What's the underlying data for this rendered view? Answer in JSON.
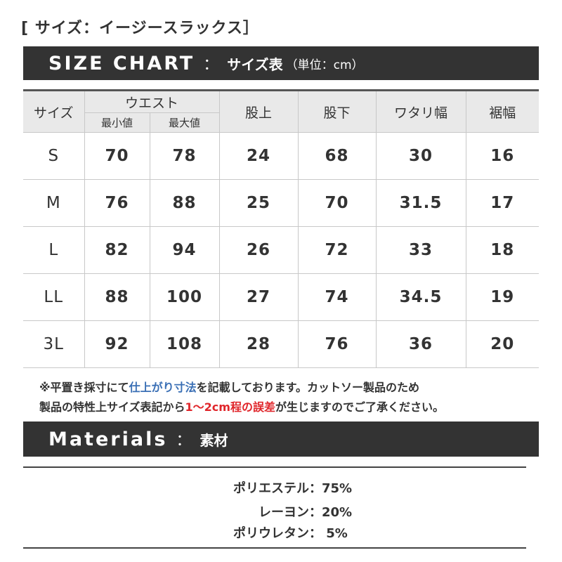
{
  "title": "[ サイズ：イージースラックス］",
  "size_chart_bar": {
    "en": "SIZE CHART",
    "colon": "：",
    "jp": "サイズ表",
    "unit": "（単位：cm）"
  },
  "table": {
    "headers": {
      "size": "サイズ",
      "waist": "ウエスト",
      "waist_min": "最小値",
      "waist_max": "最大値",
      "rise": "股上",
      "inseam": "股下",
      "thigh": "ワタリ幅",
      "hem": "裾幅"
    },
    "rows": [
      [
        "S",
        "70",
        "78",
        "24",
        "68",
        "30",
        "16"
      ],
      [
        "M",
        "76",
        "88",
        "25",
        "70",
        "31.5",
        "17"
      ],
      [
        "L",
        "82",
        "94",
        "26",
        "72",
        "33",
        "18"
      ],
      [
        "LL",
        "88",
        "100",
        "27",
        "74",
        "34.5",
        "19"
      ],
      [
        "3L",
        "92",
        "108",
        "28",
        "76",
        "36",
        "20"
      ]
    ]
  },
  "notes": {
    "line1_a": "※平置き採寸にて",
    "line1_blue": "仕上がり寸法",
    "line1_b": "を記載しております。カットソー製品のため",
    "line2_a": "製品の特性上サイズ表記から",
    "line2_red": "1～2cm程の誤差",
    "line2_b": "が生じますのでご了承ください。"
  },
  "materials_bar": {
    "en": "Materials",
    "colon": "：",
    "jp": "素材"
  },
  "materials": [
    {
      "name": "ポリエステル",
      "value": "：75%"
    },
    {
      "name": "レーヨン",
      "value": "：20%"
    },
    {
      "name": "ポリウレタン",
      "value": "： 5%"
    }
  ],
  "colors": {
    "bar": "#333333",
    "header_bg": "#e9e9e9",
    "blue": "#3a6fb5",
    "red": "#e0262b"
  }
}
